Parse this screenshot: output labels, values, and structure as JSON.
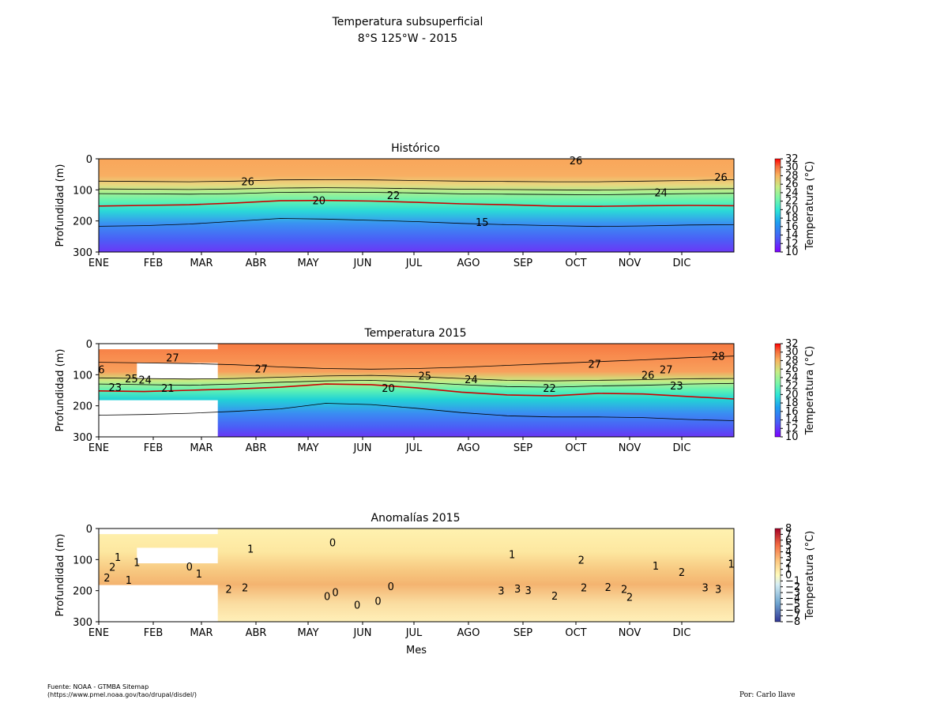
{
  "figure": {
    "title_line1": "Temperatura subsuperficial",
    "title_line2": "8°S 125°W - 2015",
    "source_line1": "Fuente: NOAA - GTMBA Sitemap",
    "source_line2": "(https://www.pmel.noaa.gov/tao/drupal/disdel/)",
    "credit": "Por: Carlo llave"
  },
  "colors": {
    "frame": "#000000",
    "contour": "#000000",
    "isotherm_20": "#cc0000"
  },
  "chart_data": [
    {
      "type": "heatmap",
      "title": "Histórico",
      "ylabel": "Profundidad (m)",
      "xlabel": "",
      "x_ticks": [
        "ENE",
        "FEB",
        "MAR",
        "ABR",
        "MAY",
        "JUN",
        "JUL",
        "AGO",
        "SEP",
        "OCT",
        "NOV",
        "DIC"
      ],
      "y_ticks": [
        "0",
        "100",
        "200",
        "300"
      ],
      "ylim": [
        300,
        0
      ],
      "y_inverted": true,
      "colorbar": {
        "label": "Temperatura (°C)",
        "ticks": [
          "10",
          "12",
          "14",
          "16",
          "18",
          "20",
          "22",
          "24",
          "26",
          "28",
          "30",
          "32"
        ],
        "range": [
          10,
          32
        ],
        "colormap": "rainbow"
      },
      "contour_labels": [
        {
          "text": "26",
          "month": 2.85,
          "depth": 72
        },
        {
          "text": "20",
          "month": 4.2,
          "depth": 133
        },
        {
          "text": "22",
          "month": 5.6,
          "depth": 117
        },
        {
          "text": "15",
          "month": 7.25,
          "depth": 203
        },
        {
          "text": "26",
          "month": 9.0,
          "depth": 5
        },
        {
          "text": "24",
          "month": 10.6,
          "depth": 108
        },
        {
          "text": "26",
          "month": 11.75,
          "depth": 58
        }
      ],
      "isotherms": [
        {
          "value": 26,
          "color": "contour",
          "depth": [
            72,
            73,
            74,
            72,
            68,
            67,
            68,
            70,
            72,
            73,
            74,
            74,
            72,
            70,
            67
          ]
        },
        {
          "value": 24,
          "color": "contour",
          "depth": [
            97,
            98,
            99,
            97,
            94,
            93,
            94,
            96,
            98,
            99,
            100,
            101,
            99,
            97,
            96
          ]
        },
        {
          "value": 22,
          "color": "contour",
          "depth": [
            112,
            113,
            114,
            112,
            108,
            107,
            108,
            110,
            113,
            114,
            115,
            116,
            114,
            112,
            111
          ]
        },
        {
          "value": 20,
          "color": "isotherm_20",
          "depth": [
            152,
            150,
            148,
            142,
            135,
            134,
            136,
            140,
            145,
            148,
            152,
            153,
            151,
            150,
            151
          ]
        },
        {
          "value": 15,
          "color": "contour",
          "depth": [
            217,
            215,
            210,
            201,
            192,
            194,
            198,
            202,
            208,
            212,
            215,
            218,
            216,
            213,
            212
          ]
        }
      ]
    },
    {
      "type": "heatmap",
      "title": "Temperatura 2015",
      "ylabel": "Profundidad (m)",
      "xlabel": "",
      "x_ticks": [
        "ENE",
        "FEB",
        "MAR",
        "ABR",
        "MAY",
        "JUN",
        "JUL",
        "AGO",
        "SEP",
        "OCT",
        "NOV",
        "DIC"
      ],
      "y_ticks": [
        "0",
        "100",
        "200",
        "300"
      ],
      "ylim": [
        300,
        0
      ],
      "y_inverted": true,
      "colorbar": {
        "label": "Temperatura (°C)",
        "ticks": [
          "10",
          "12",
          "14",
          "16",
          "18",
          "20",
          "22",
          "24",
          "26",
          "28",
          "30",
          "32"
        ],
        "range": [
          10,
          32
        ],
        "colormap": "rainbow"
      },
      "contour_labels": [
        {
          "text": "27",
          "month": 1.4,
          "depth": 45
        },
        {
          "text": "6",
          "month": 0.05,
          "depth": 83
        },
        {
          "text": "25",
          "month": 0.6,
          "depth": 112
        },
        {
          "text": "24",
          "month": 0.85,
          "depth": 116
        },
        {
          "text": "23",
          "month": 0.3,
          "depth": 140
        },
        {
          "text": "21",
          "month": 1.3,
          "depth": 143
        },
        {
          "text": "27",
          "month": 3.1,
          "depth": 80
        },
        {
          "text": "20",
          "month": 5.5,
          "depth": 142
        },
        {
          "text": "25",
          "month": 6.2,
          "depth": 103
        },
        {
          "text": "24",
          "month": 7.05,
          "depth": 115
        },
        {
          "text": "22",
          "month": 8.5,
          "depth": 142
        },
        {
          "text": "27",
          "month": 9.35,
          "depth": 65
        },
        {
          "text": "26",
          "month": 10.35,
          "depth": 100
        },
        {
          "text": "27",
          "month": 10.7,
          "depth": 82
        },
        {
          "text": "23",
          "month": 10.9,
          "depth": 135
        },
        {
          "text": "28",
          "month": 11.7,
          "depth": 40
        }
      ],
      "isotherms": [
        {
          "value": 27,
          "color": "contour",
          "depth": [
            60,
            62,
            64,
            68,
            75,
            80,
            82,
            80,
            76,
            70,
            64,
            58,
            52,
            45,
            40
          ]
        },
        {
          "value": 24,
          "color": "contour",
          "depth": [
            110,
            112,
            114,
            112,
            108,
            104,
            102,
            106,
            112,
            118,
            120,
            118,
            116,
            113,
            112
          ]
        },
        {
          "value": 22,
          "color": "contour",
          "depth": [
            130,
            132,
            134,
            130,
            124,
            120,
            118,
            124,
            132,
            138,
            140,
            136,
            134,
            130,
            128
          ]
        },
        {
          "value": 20,
          "color": "isotherm_20",
          "depth": [
            152,
            154,
            150,
            146,
            140,
            130,
            132,
            142,
            156,
            165,
            168,
            160,
            162,
            170,
            178
          ]
        },
        {
          "value": 15,
          "color": "contour",
          "depth": [
            230,
            228,
            224,
            218,
            210,
            192,
            196,
            208,
            222,
            232,
            236,
            236,
            238,
            244,
            248
          ]
        }
      ],
      "missing_data": [
        {
          "month_from": 0.0,
          "month_to": 2.3,
          "depth_from": 0,
          "depth_to": 18
        },
        {
          "month_from": 0.7,
          "month_to": 2.3,
          "depth_from": 62,
          "depth_to": 112
        },
        {
          "month_from": 0.0,
          "month_to": 2.3,
          "depth_from": 182,
          "depth_to": 300
        }
      ]
    },
    {
      "type": "heatmap",
      "title": "Anomalías 2015",
      "ylabel": "Profundidad (m)",
      "xlabel": "Mes",
      "x_ticks": [
        "ENE",
        "FEB",
        "MAR",
        "ABR",
        "MAY",
        "JUN",
        "JUL",
        "AGO",
        "SEP",
        "OCT",
        "NOV",
        "DIC"
      ],
      "y_ticks": [
        "0",
        "100",
        "200",
        "300"
      ],
      "ylim": [
        300,
        0
      ],
      "y_inverted": true,
      "colorbar": {
        "label": "Temperatura (°C)",
        "ticks": [
          "−8",
          "−7",
          "−6",
          "−5",
          "−4",
          "−3",
          "−2",
          "−1",
          "0",
          "1",
          "2",
          "3",
          "4",
          "5",
          "6",
          "7",
          "8"
        ],
        "range": [
          -8,
          8
        ],
        "colormap": "RdYlBu_r"
      },
      "contour_labels": [
        {
          "text": "1",
          "month": 0.35,
          "depth": 92
        },
        {
          "text": "2",
          "month": 0.25,
          "depth": 123
        },
        {
          "text": "1",
          "month": 0.7,
          "depth": 108
        },
        {
          "text": "2",
          "month": 0.15,
          "depth": 158
        },
        {
          "text": "1",
          "month": 0.55,
          "depth": 165
        },
        {
          "text": "0",
          "month": 1.75,
          "depth": 122
        },
        {
          "text": "1",
          "month": 1.95,
          "depth": 145
        },
        {
          "text": "1",
          "month": 2.9,
          "depth": 65
        },
        {
          "text": "0",
          "month": 4.45,
          "depth": 45
        },
        {
          "text": "2",
          "month": 2.5,
          "depth": 195
        },
        {
          "text": "2",
          "month": 2.8,
          "depth": 190
        },
        {
          "text": "0",
          "month": 4.5,
          "depth": 205
        },
        {
          "text": "0",
          "month": 4.35,
          "depth": 218
        },
        {
          "text": "0",
          "month": 4.9,
          "depth": 245
        },
        {
          "text": "0",
          "month": 5.3,
          "depth": 232
        },
        {
          "text": "0",
          "month": 5.55,
          "depth": 185
        },
        {
          "text": "1",
          "month": 7.8,
          "depth": 83
        },
        {
          "text": "2",
          "month": 9.1,
          "depth": 100
        },
        {
          "text": "1",
          "month": 10.5,
          "depth": 120
        },
        {
          "text": "2",
          "month": 11.0,
          "depth": 140
        },
        {
          "text": "1",
          "month": 11.95,
          "depth": 113
        },
        {
          "text": "3",
          "month": 7.6,
          "depth": 200
        },
        {
          "text": "3",
          "month": 7.9,
          "depth": 193
        },
        {
          "text": "3",
          "month": 8.1,
          "depth": 198
        },
        {
          "text": "2",
          "month": 8.6,
          "depth": 216
        },
        {
          "text": "2",
          "month": 9.15,
          "depth": 190
        },
        {
          "text": "2",
          "month": 9.6,
          "depth": 188
        },
        {
          "text": "2",
          "month": 9.9,
          "depth": 195
        },
        {
          "text": "2",
          "month": 10.0,
          "depth": 220
        },
        {
          "text": "3",
          "month": 11.45,
          "depth": 190
        },
        {
          "text": "3",
          "month": 11.7,
          "depth": 195
        }
      ],
      "missing_data": [
        {
          "month_from": 0.0,
          "month_to": 2.3,
          "depth_from": 0,
          "depth_to": 18
        },
        {
          "month_from": 0.7,
          "month_to": 2.3,
          "depth_from": 62,
          "depth_to": 112
        },
        {
          "month_from": 0.0,
          "month_to": 2.3,
          "depth_from": 182,
          "depth_to": 300
        }
      ]
    }
  ]
}
